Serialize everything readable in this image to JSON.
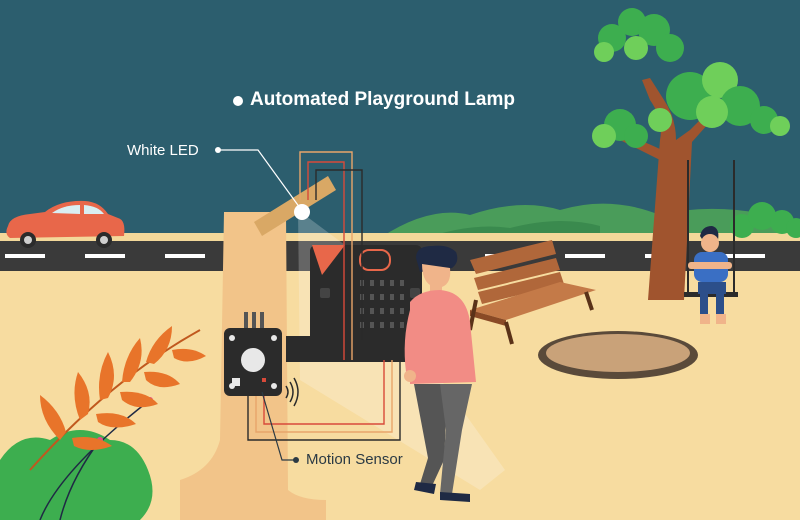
{
  "title": "Automated Playground Lamp",
  "labels": {
    "white_led": "White LED",
    "motion_sensor": "Motion Sensor"
  },
  "colors": {
    "sky": "#2c5e6e",
    "ground": "#f7dca0",
    "road": "#3a3a3a",
    "lamp_post": "#f2c489",
    "car": "#e8674a",
    "tree_leaves": "#3dae4f",
    "tree_trunk": "#a0542e",
    "bench": "#b0673a",
    "person_shirt": "#f28c85",
    "child_shirt": "#3a6fc4",
    "wire_orange": "#e8a56a",
    "wire_red": "#d84a3a"
  }
}
